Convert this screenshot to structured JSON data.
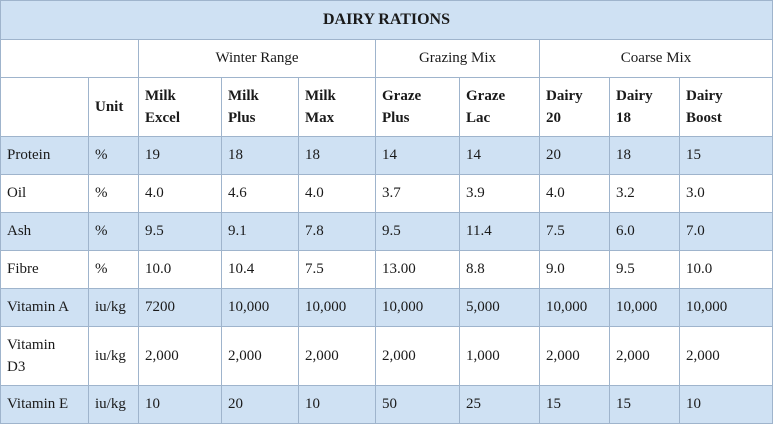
{
  "title": "DAIRY RATIONS",
  "groups": [
    {
      "label": "Winter Range",
      "span": 3
    },
    {
      "label": "Grazing Mix",
      "span": 2
    },
    {
      "label": "Coarse Mix",
      "span": 3
    }
  ],
  "unit_header": "Unit",
  "products": [
    {
      "line1": "Milk",
      "line2": "Excel"
    },
    {
      "line1": "Milk",
      "line2": "Plus"
    },
    {
      "line1": "Milk",
      "line2": "Max"
    },
    {
      "line1": "Graze",
      "line2": "Plus"
    },
    {
      "line1": "Graze",
      "line2": "Lac"
    },
    {
      "line1": "Dairy",
      "line2": "20"
    },
    {
      "line1": "Dairy",
      "line2": "18"
    },
    {
      "line1": "Dairy",
      "line2": "Boost"
    }
  ],
  "rows": [
    {
      "nutrient": "Protein",
      "unit": "%",
      "values": [
        "19",
        "18",
        "18",
        "14",
        "14",
        "20",
        "18",
        "15"
      ]
    },
    {
      "nutrient": "Oil",
      "unit": "%",
      "values": [
        "4.0",
        "4.6",
        "4.0",
        "3.7",
        "3.9",
        "4.0",
        "3.2",
        "3.0"
      ]
    },
    {
      "nutrient": "Ash",
      "unit": "%",
      "values": [
        "9.5",
        "9.1",
        "7.8",
        "9.5",
        "11.4",
        "7.5",
        "6.0",
        "7.0"
      ]
    },
    {
      "nutrient": "Fibre",
      "unit": "%",
      "values": [
        "10.0",
        "10.4",
        "7.5",
        "13.00",
        "8.8",
        "9.0",
        "9.5",
        "10.0"
      ]
    },
    {
      "nutrient": "Vitamin A",
      "unit": "iu/kg",
      "values": [
        "7200",
        "10,000",
        "10,000",
        "10,000",
        "5,000",
        "10,000",
        "10,000",
        "10,000"
      ]
    },
    {
      "nutrient": "Vitamin D3",
      "unit": "iu/kg",
      "values": [
        "2,000",
        "2,000",
        "2,000",
        "2,000",
        "1,000",
        "2,000",
        "2,000",
        "2,000"
      ]
    },
    {
      "nutrient": "Vitamin E",
      "unit": "iu/kg",
      "values": [
        "10",
        "20",
        "10",
        "50",
        "25",
        "15",
        "15",
        "10"
      ]
    }
  ],
  "colors": {
    "shaded_row": "#cfe1f3",
    "border": "#9fb4cc"
  }
}
